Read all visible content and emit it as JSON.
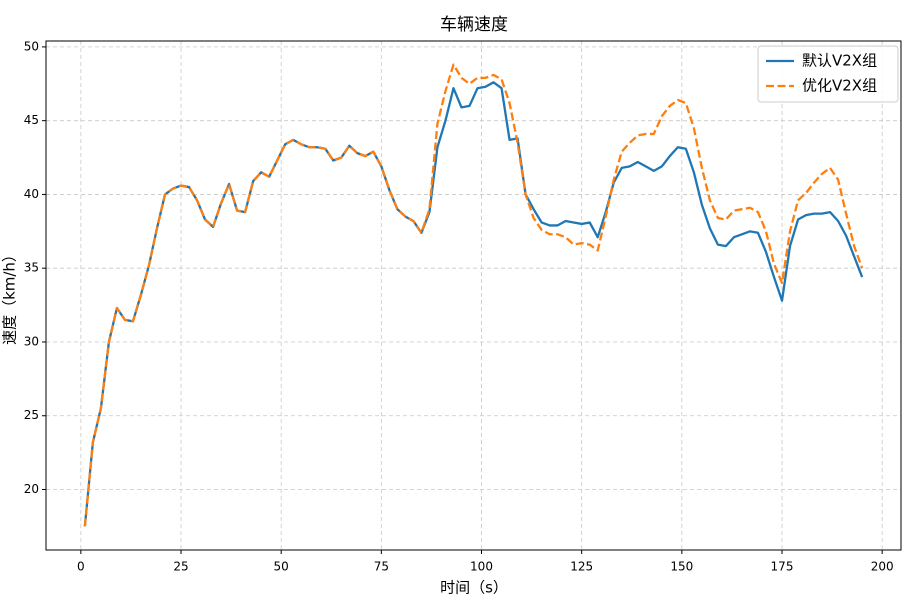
{
  "chart_data": {
    "type": "line",
    "title": "车辆速度",
    "xlabel": "时间（s）",
    "ylabel": "速度（km/h）",
    "x": [
      1,
      3,
      5,
      7,
      9,
      11,
      13,
      15,
      17,
      19,
      21,
      23,
      25,
      27,
      29,
      31,
      33,
      35,
      37,
      39,
      41,
      43,
      45,
      47,
      49,
      51,
      53,
      55,
      57,
      59,
      61,
      63,
      65,
      67,
      69,
      71,
      73,
      75,
      77,
      79,
      81,
      83,
      85,
      87,
      89,
      91,
      93,
      95,
      97,
      99,
      101,
      103,
      105,
      107,
      109,
      111,
      113,
      115,
      117,
      119,
      121,
      123,
      125,
      127,
      129,
      131,
      133,
      135,
      137,
      139,
      141,
      143,
      145,
      147,
      149,
      151,
      153,
      155,
      157,
      159,
      161,
      163,
      165,
      167,
      169,
      171,
      173,
      175,
      177,
      179,
      181,
      183,
      185,
      187,
      189,
      191,
      193,
      195
    ],
    "series": [
      {
        "name": "默认V2X组",
        "color": "#1f77b4",
        "dash": false,
        "values": [
          17.5,
          23.2,
          25.5,
          30,
          32.3,
          31.5,
          31.4,
          33.2,
          35.2,
          37.7,
          40,
          40.4,
          40.6,
          40.5,
          39.6,
          38.3,
          37.8,
          39.4,
          40.7,
          38.9,
          38.8,
          40.9,
          41.5,
          41.2,
          42.3,
          43.4,
          43.7,
          43.4,
          43.2,
          43.2,
          43.1,
          42.3,
          42.5,
          43.3,
          42.8,
          42.6,
          42.9,
          41.9,
          40.3,
          39,
          38.5,
          38.2,
          37.4,
          38.8,
          43.2,
          45,
          47.2,
          45.9,
          46,
          47.2,
          47.3,
          47.6,
          47.2,
          43.7,
          43.8,
          40,
          39,
          38.1,
          37.9,
          37.9,
          38.2,
          38.1,
          38,
          38.1,
          37.1,
          38.8,
          40.8,
          41.8,
          41.9,
          42.2,
          41.9,
          41.6,
          41.9,
          42.6,
          43.2,
          43.1,
          41.5,
          39.3,
          37.7,
          36.6,
          36.5,
          37.1,
          37.3,
          37.5,
          37.4,
          36.1,
          34.4,
          32.8,
          36.5,
          38.3,
          38.6,
          38.7,
          38.7,
          38.8,
          38.2,
          37.2,
          35.8,
          34.4
        ]
      },
      {
        "name": "优化V2X组",
        "color": "#ff7f0e",
        "dash": true,
        "values": [
          17.5,
          23.2,
          25.5,
          30,
          32.3,
          31.5,
          31.4,
          33.2,
          35.2,
          37.7,
          40,
          40.4,
          40.6,
          40.5,
          39.6,
          38.3,
          37.8,
          39.4,
          40.7,
          38.9,
          38.8,
          40.9,
          41.5,
          41.2,
          42.3,
          43.4,
          43.7,
          43.4,
          43.2,
          43.2,
          43.1,
          42.3,
          42.5,
          43.3,
          42.8,
          42.6,
          42.9,
          41.9,
          40.3,
          39,
          38.5,
          38.2,
          37.4,
          39,
          44.8,
          47,
          48.8,
          47.9,
          47.5,
          47.9,
          47.9,
          48.1,
          47.8,
          46.2,
          43.5,
          40,
          38.4,
          37.6,
          37.3,
          37.3,
          37.1,
          36.6,
          36.7,
          36.6,
          36.2,
          38.5,
          41,
          42.9,
          43.5,
          44,
          44.1,
          44.1,
          45.3,
          46,
          46.4,
          46.2,
          44.5,
          41.8,
          39.6,
          38.4,
          38.3,
          38.9,
          39,
          39.1,
          38.8,
          37.5,
          35.3,
          34,
          37.5,
          39.6,
          40.1,
          40.8,
          41.4,
          41.8,
          41,
          38.7,
          36.5,
          35
        ]
      }
    ],
    "xlim": [
      -8.7,
      204.7
    ],
    "ylim": [
      15.9,
      50.4
    ],
    "xticks": [
      0,
      25,
      50,
      75,
      100,
      125,
      150,
      175,
      200
    ],
    "yticks": [
      20,
      25,
      30,
      35,
      40,
      45,
      50
    ],
    "grid": true,
    "legend": "upper right"
  }
}
